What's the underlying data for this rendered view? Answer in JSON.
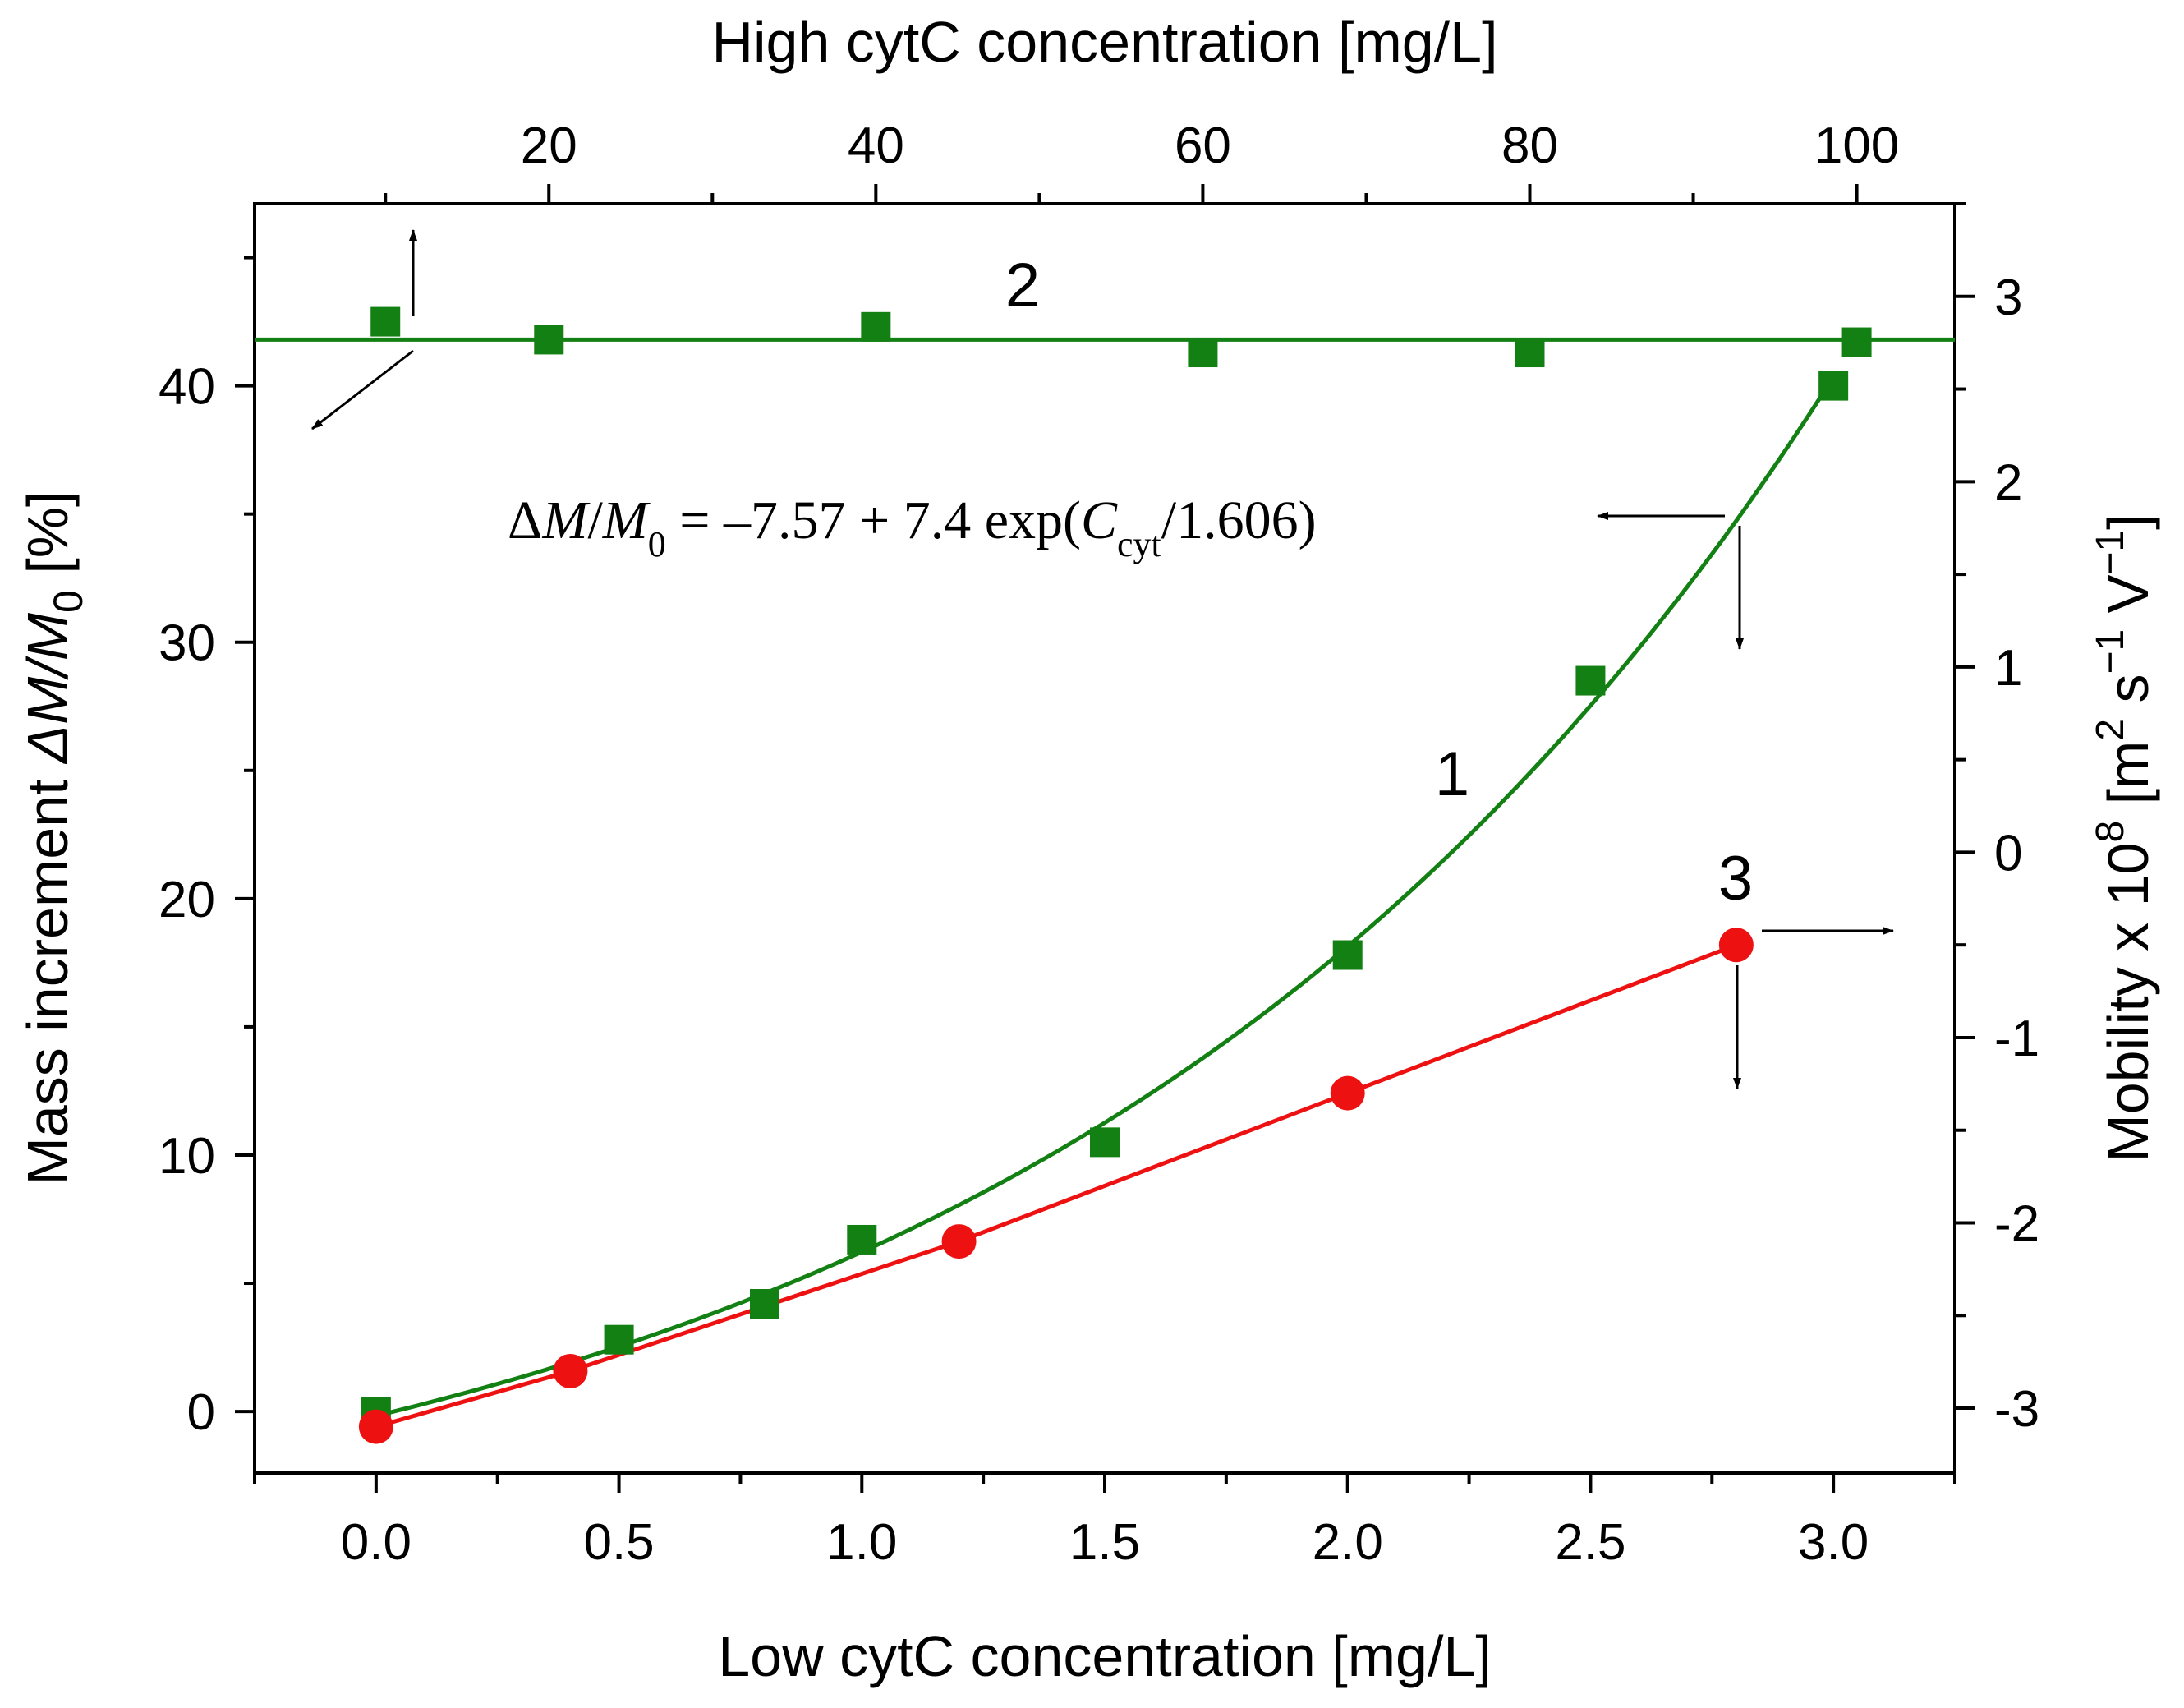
{
  "chart_data": {
    "type": "scatter",
    "title": "",
    "axes": {
      "bottom": {
        "label": "Low cytC concentration [mg/L]",
        "range": [
          -0.25,
          3.25
        ],
        "ticks": [
          0.0,
          0.5,
          1.0,
          1.5,
          2.0,
          2.5,
          3.0
        ],
        "tick_labels": [
          "0.0",
          "0.5",
          "1.0",
          "1.5",
          "2.0",
          "2.5",
          "3.0"
        ]
      },
      "top": {
        "label": "High cytC concentration [mg/L]",
        "range": [
          2.0,
          106.0
        ],
        "ticks": [
          20,
          40,
          60,
          80,
          100
        ],
        "tick_labels": [
          "20",
          "40",
          "60",
          "80",
          "100"
        ]
      },
      "left": {
        "label_prefix": "Mass increment",
        "label_formula": "ΔM/M",
        "label_sub": "0",
        "label_unit": "[%]",
        "range": [
          -2.4,
          47.1
        ],
        "ticks": [
          0,
          10,
          20,
          30,
          40
        ],
        "tick_labels": [
          "0",
          "10",
          "20",
          "30",
          "40"
        ]
      },
      "right": {
        "label_main": "Mobility x 10",
        "label_exp": "8",
        "label_unit_open": "[m",
        "label_unit_exp1": "2",
        "label_unit_mid": " s",
        "label_unit_exp2": "−1",
        "label_unit_v": " V",
        "label_unit_exp3": "−1",
        "label_unit_close": "]",
        "range": [
          -3.35,
          3.5
        ],
        "ticks": [
          -3,
          -2,
          -1,
          0,
          1,
          2,
          3
        ],
        "tick_labels": [
          "-3",
          "-2",
          "-1",
          "0",
          "1",
          "2",
          "3"
        ]
      }
    },
    "series": [
      {
        "name": "1",
        "label": "1",
        "axes": "bottom-left",
        "marker": "square",
        "color": "#138013",
        "x": [
          0.0,
          0.5,
          0.8,
          1.0,
          1.5,
          2.0,
          2.5,
          3.0
        ],
        "y": [
          0.0,
          2.8,
          4.2,
          6.7,
          10.5,
          17.8,
          28.5,
          40.0
        ],
        "fit": {
          "type": "exp",
          "a": -7.57,
          "b": 7.4,
          "c": 1.606,
          "x_range": [
            0.0,
            3.0
          ]
        }
      },
      {
        "name": "2",
        "label": "2",
        "axes": "top-left",
        "marker": "square",
        "color": "#138013",
        "x": [
          10,
          20,
          40,
          60,
          80,
          100
        ],
        "y": [
          42.5,
          41.8,
          42.3,
          41.3,
          41.3,
          41.7
        ],
        "fit": {
          "type": "constant",
          "value": 41.8
        }
      },
      {
        "name": "3",
        "label": "3",
        "axes": "bottom-right",
        "marker": "circle",
        "color": "#ee1111",
        "x": [
          0.0,
          0.4,
          1.2,
          2.0,
          2.8
        ],
        "y": [
          -3.1,
          -2.8,
          -2.1,
          -1.3,
          -0.5
        ],
        "fit": {
          "type": "polyline"
        }
      }
    ],
    "annotations": {
      "equation": {
        "delta": "Δ",
        "M1": "M",
        "slash1": "/",
        "M2": "M",
        "sub0": "0",
        "eq_text": " = –7.57 + 7.4 exp(",
        "C": "C",
        "sub_cyt": "cyt",
        "tail": "/1.606)"
      }
    },
    "grid": false,
    "legend": "none"
  }
}
